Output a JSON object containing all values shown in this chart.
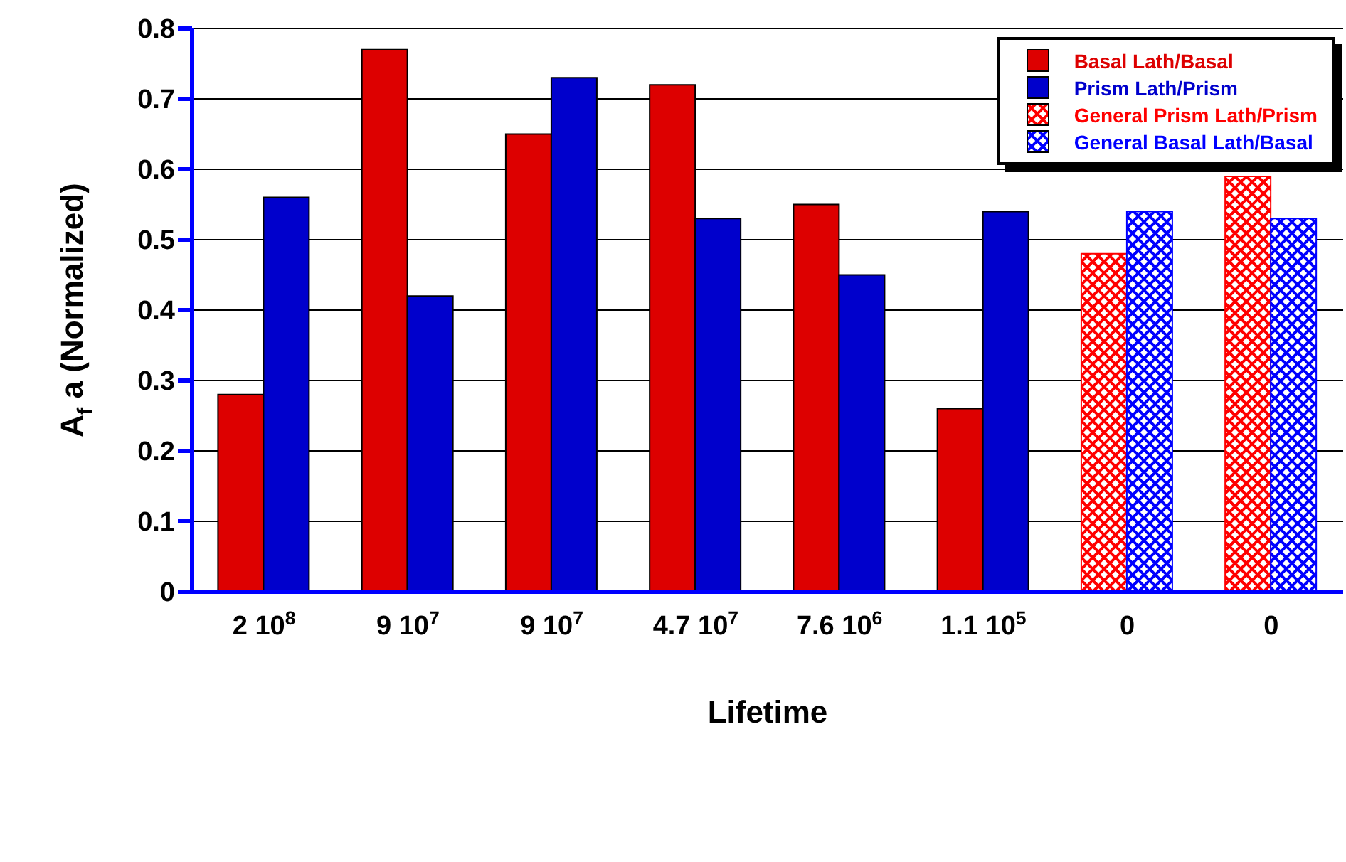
{
  "chart_data": {
    "type": "bar",
    "xlabel": "Lifetime",
    "ylabel": "A$_{f}$ a (Normalized)",
    "categories": [
      "2 10$^{8}$",
      "9 10$^{7}$",
      "9 10$^{7}$",
      "4.7 10$^{7}$",
      "7.6 10$^{6}$",
      "1.1 10$^{5}$",
      "0",
      "0"
    ],
    "series": [
      {
        "name": "Basal Lath/Basal",
        "color": "#dd0000",
        "values": [
          0.28,
          0.77,
          0.65,
          0.72,
          0.55,
          0.26,
          null,
          null
        ]
      },
      {
        "name": "Prism Lath/Prism",
        "color": "#0000cc",
        "values": [
          0.56,
          0.42,
          0.73,
          0.53,
          0.45,
          0.54,
          null,
          null
        ]
      },
      {
        "name": "General Prism Lath/Prism",
        "color": "#ff0000",
        "values": [
          null,
          null,
          null,
          null,
          null,
          null,
          0.48,
          0.59
        ]
      },
      {
        "name": "General Basal Lath/Basal",
        "color": "#0000ff",
        "values": [
          null,
          null,
          null,
          null,
          null,
          null,
          0.54,
          0.53
        ]
      }
    ],
    "ylim": [
      0,
      0.8
    ],
    "yticks": [
      0,
      0.1,
      0.2,
      0.3,
      0.4,
      0.5,
      0.6,
      0.7,
      0.8
    ],
    "grid": "y",
    "legend": "top right"
  }
}
